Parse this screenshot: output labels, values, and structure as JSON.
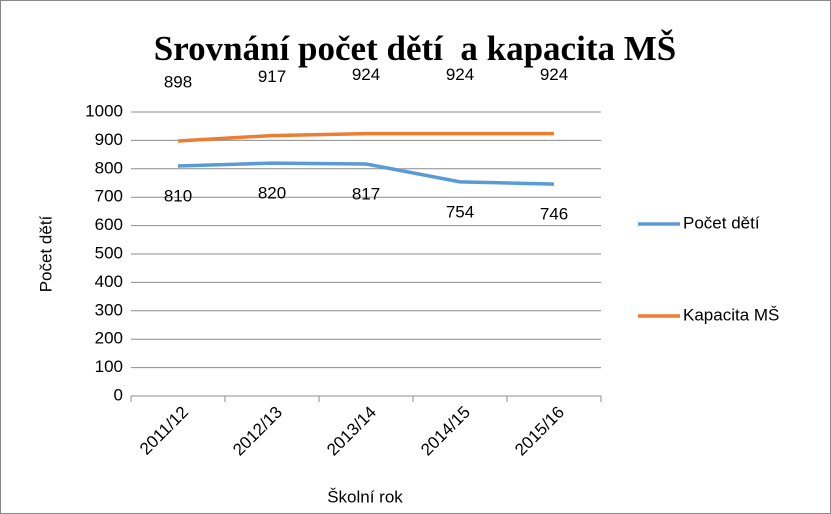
{
  "chart_data": {
    "type": "line",
    "title": "Srovnání počet dětí  a kapacita MŠ",
    "x_label": "Školní rok",
    "y_label": "Počet dětí",
    "categories": [
      "2011/12",
      "2012/13",
      "2013/14",
      "2014/15",
      "2015/16"
    ],
    "series": [
      {
        "name": "Počet dětí",
        "color": "#5b9bd5",
        "values": [
          810,
          820,
          817,
          754,
          746
        ]
      },
      {
        "name": "Kapacita MŠ",
        "color": "#ed7d31",
        "values": [
          898,
          917,
          924,
          924,
          924
        ]
      }
    ],
    "ylim": [
      0,
      1000
    ],
    "yticks": [
      0,
      100,
      200,
      300,
      400,
      500,
      600,
      700,
      800,
      900,
      1000
    ],
    "grid": true,
    "legend": "right"
  }
}
